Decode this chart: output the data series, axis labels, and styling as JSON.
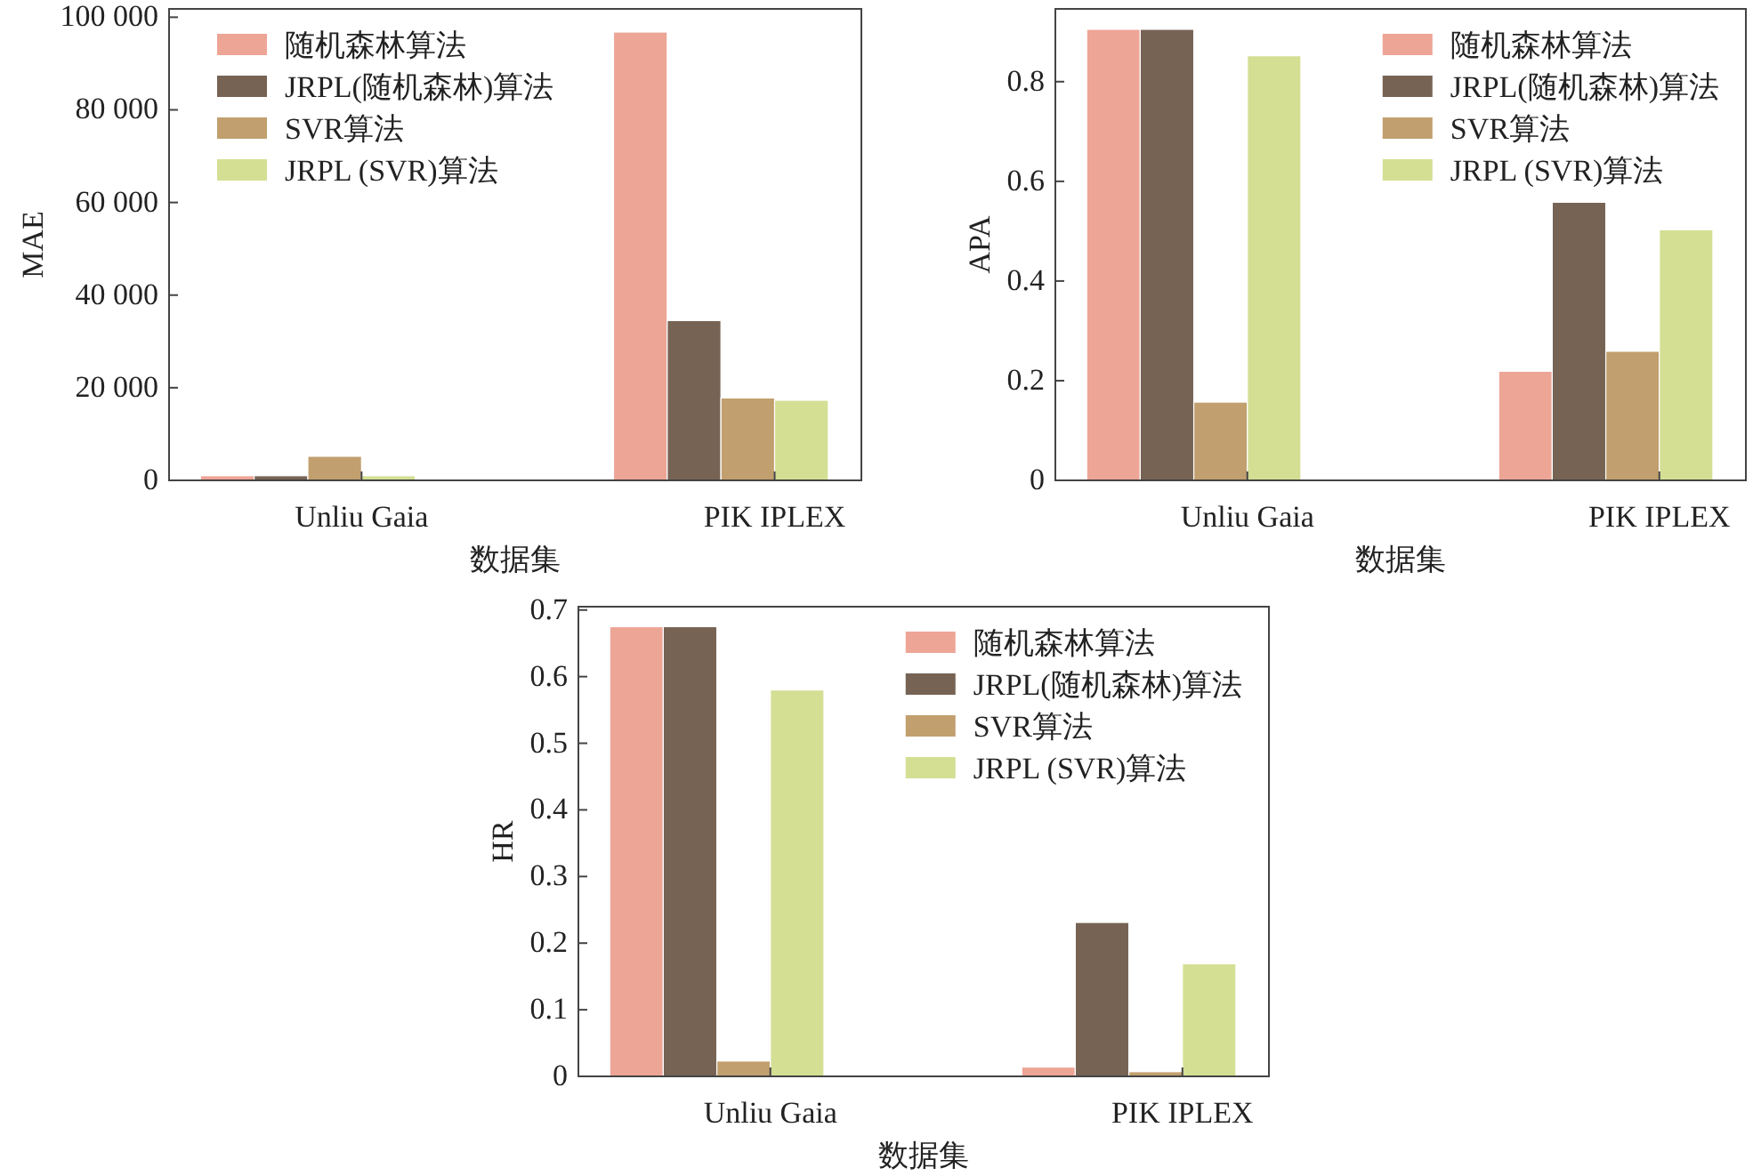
{
  "chart_data": [
    {
      "type": "bar",
      "xlabel": "数据集",
      "ylabel": "MAE",
      "categories": [
        "Unliu Gaia",
        "PIK IPLEX"
      ],
      "ylim": [
        0,
        101800
      ],
      "yticks": [
        0,
        {
          "value": 20000,
          "label": "20 000"
        },
        {
          "value": 40000,
          "label": "40 000"
        },
        {
          "value": 60000,
          "label": "60 000"
        },
        {
          "value": 80000,
          "label": "80 000"
        },
        {
          "value": 100000,
          "label": "100 000"
        }
      ],
      "legend": "top left",
      "series": [
        {
          "name": "随机森林算法",
          "color": "#eda596",
          "values": [
            1000,
            96800
          ]
        },
        {
          "name": "JRPL(随机森林)算法",
          "color": "#766354",
          "values": [
            1000,
            34500
          ]
        },
        {
          "name": "SVR算法",
          "color": "#c19f6e",
          "values": [
            5200,
            17800
          ]
        },
        {
          "name": "JRPL (SVR)算法",
          "color": "#d4df94",
          "values": [
            1000,
            17300
          ]
        }
      ]
    },
    {
      "type": "bar",
      "xlabel": "数据集",
      "ylabel": "APA",
      "categories": [
        "Unliu Gaia",
        "PIK IPLEX"
      ],
      "ylim": [
        0,
        0.946
      ],
      "yticks": [
        0,
        0.2,
        0.4,
        0.6,
        0.8
      ],
      "legend": "top right",
      "series": [
        {
          "name": "随机森林算法",
          "color": "#eda596",
          "values": [
            0.905,
            0.219
          ]
        },
        {
          "name": "JRPL(随机森林)算法",
          "color": "#766354",
          "values": [
            0.905,
            0.558
          ]
        },
        {
          "name": "SVR算法",
          "color": "#c19f6e",
          "values": [
            0.157,
            0.259
          ]
        },
        {
          "name": "JRPL (SVR)算法",
          "color": "#d4df94",
          "values": [
            0.852,
            0.503
          ]
        }
      ]
    },
    {
      "type": "bar",
      "xlabel": "数据集",
      "ylabel": "HR",
      "categories": [
        "Unliu Gaia",
        "PIK IPLEX"
      ],
      "ylim": [
        0,
        0.705
      ],
      "yticks": [
        0,
        0.1,
        0.2,
        0.3,
        0.4,
        0.5,
        0.6,
        0.7
      ],
      "legend": "top right",
      "series": [
        {
          "name": "随机森林算法",
          "color": "#eda596",
          "values": [
            0.675,
            0.014
          ]
        },
        {
          "name": "JRPL(随机森林)算法",
          "color": "#766354",
          "values": [
            0.675,
            0.231
          ]
        },
        {
          "name": "SVR算法",
          "color": "#c19f6e",
          "values": [
            0.023,
            0.007
          ]
        },
        {
          "name": "JRPL (SVR)算法",
          "color": "#d4df94",
          "values": [
            0.58,
            0.169
          ]
        }
      ]
    }
  ]
}
